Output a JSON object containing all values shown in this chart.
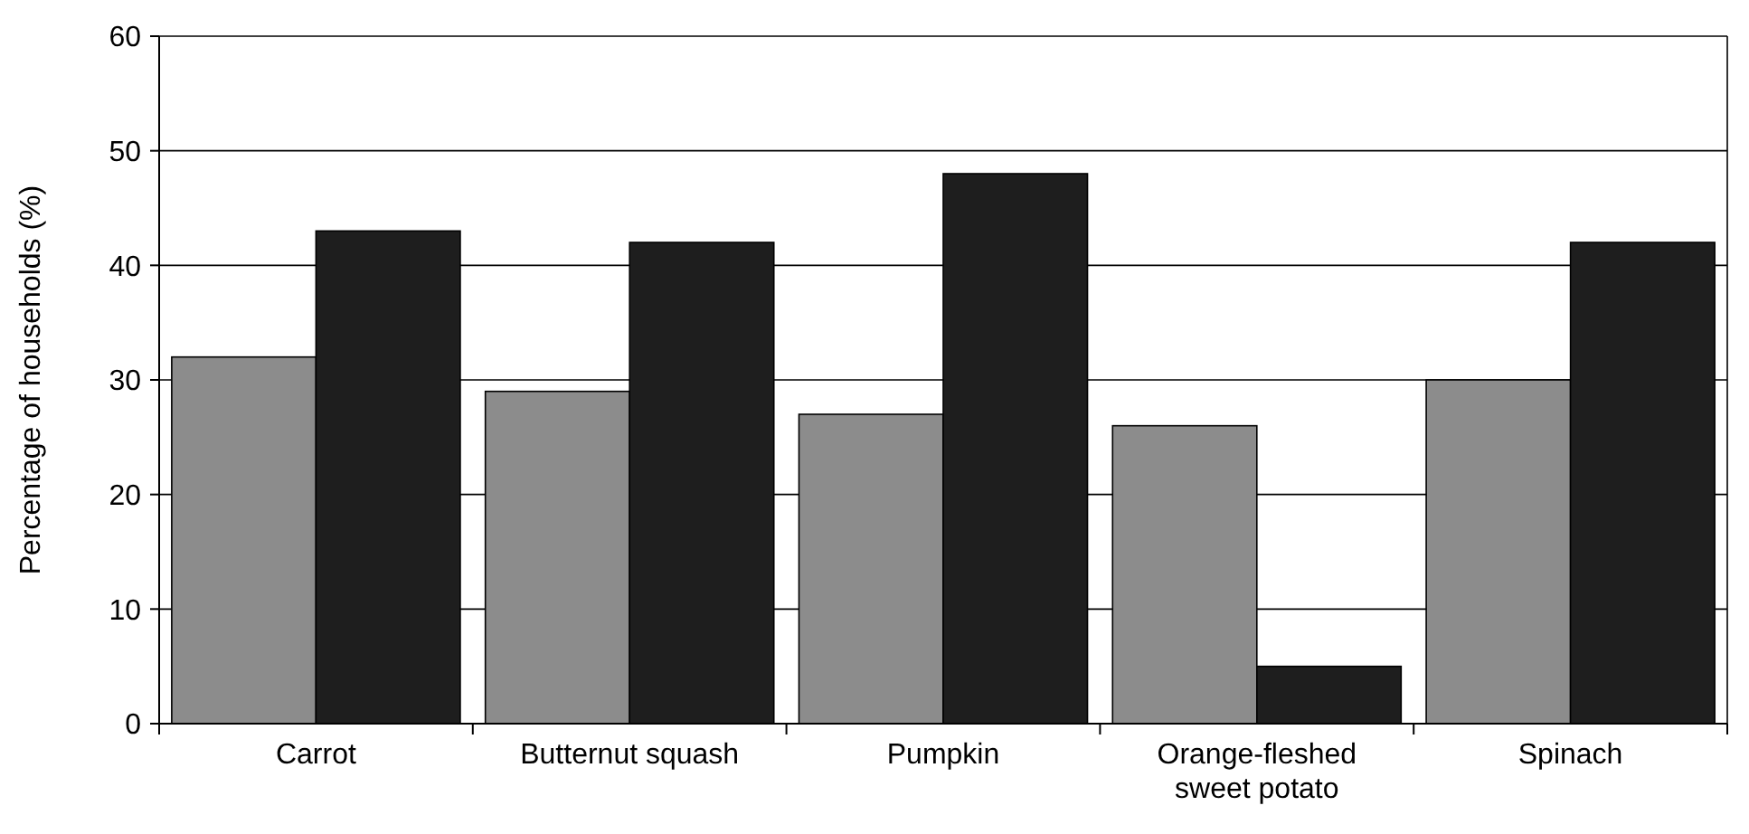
{
  "chart_data": {
    "type": "bar",
    "ylabel": "Percentage of households (%)",
    "categories": [
      "Carrot",
      "Butternut squash",
      "Pumpkin",
      "Orange-fleshed sweet potato",
      "Spinach"
    ],
    "series": [
      {
        "color": "#8c8c8c",
        "values": [
          32,
          29,
          27,
          26,
          30
        ]
      },
      {
        "color": "#1e1e1e",
        "values": [
          43,
          42,
          48,
          5,
          42
        ]
      }
    ],
    "ylim": [
      0,
      60
    ],
    "yticks": [
      0,
      10,
      20,
      30,
      40,
      50,
      60
    ],
    "grid": "y"
  }
}
